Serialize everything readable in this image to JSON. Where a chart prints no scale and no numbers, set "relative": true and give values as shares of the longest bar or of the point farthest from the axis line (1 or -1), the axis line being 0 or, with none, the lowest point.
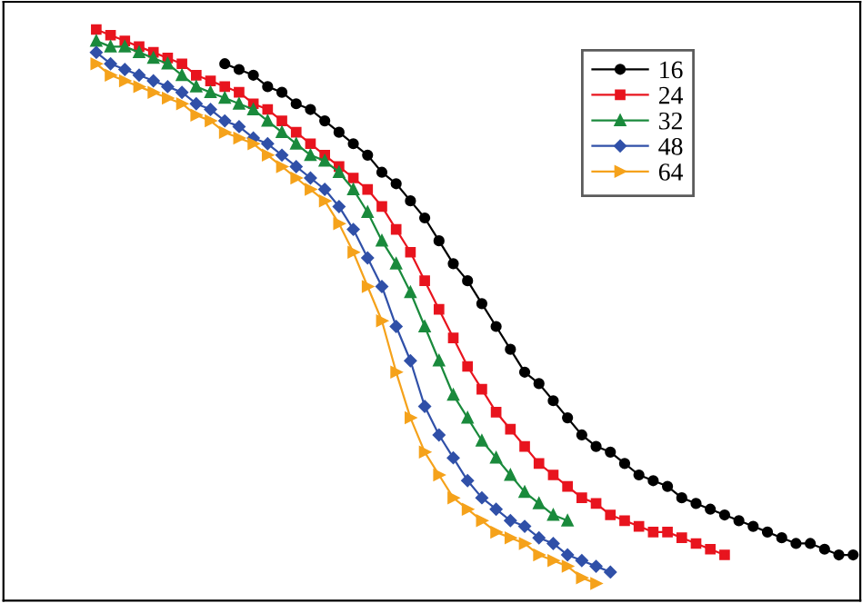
{
  "chart_data": {
    "type": "line",
    "relative": true,
    "categories": [
      null,
      null,
      null,
      null,
      null,
      null,
      null,
      null,
      null,
      null,
      null,
      null,
      null,
      null,
      null,
      null,
      null,
      null,
      null,
      null,
      null,
      null,
      null,
      null,
      null,
      null,
      null,
      null,
      null,
      null,
      null,
      null,
      null,
      null,
      null,
      null,
      null,
      null,
      null,
      null,
      null,
      null,
      null,
      null,
      null,
      null,
      null,
      null,
      null,
      null,
      null,
      null,
      null,
      null,
      null,
      null,
      null,
      null,
      null,
      null
    ],
    "legend": "top right",
    "grid": false,
    "line_style": "solid",
    "series": [
      {
        "name": "16",
        "color": "#000000",
        "marker": "circle",
        "values": [
          null,
          null,
          null,
          null,
          null,
          null,
          null,
          null,
          null,
          null,
          null,
          null,
          null,
          null,
          null,
          0.94,
          0.93,
          0.92,
          0.9,
          0.89,
          0.87,
          0.86,
          0.84,
          0.82,
          0.8,
          0.78,
          0.75,
          0.73,
          0.7,
          0.67,
          0.63,
          0.59,
          0.56,
          0.52,
          0.48,
          0.44,
          0.4,
          0.38,
          0.35,
          0.32,
          0.29,
          0.27,
          0.26,
          0.24,
          0.22,
          0.21,
          0.2,
          0.18,
          0.17,
          0.16,
          0.15,
          0.14,
          0.13,
          0.12,
          0.11,
          0.1,
          0.1,
          0.09,
          0.08,
          0.08
        ]
      },
      {
        "name": "24",
        "color": "#e8141e",
        "marker": "square",
        "values": [
          null,
          null,
          null,
          null,
          null,
          null,
          1.0,
          0.99,
          0.98,
          0.97,
          0.96,
          0.95,
          0.94,
          0.92,
          0.91,
          0.9,
          0.89,
          0.87,
          0.86,
          0.84,
          0.82,
          0.8,
          0.78,
          0.76,
          0.74,
          0.72,
          0.69,
          0.65,
          0.61,
          0.56,
          0.51,
          0.46,
          0.41,
          0.37,
          0.33,
          0.3,
          0.27,
          0.24,
          0.22,
          0.2,
          0.18,
          0.17,
          0.15,
          0.14,
          0.13,
          0.12,
          0.12,
          0.11,
          0.1,
          0.09,
          0.08,
          null,
          null,
          null,
          null,
          null,
          null,
          null,
          null,
          null
        ]
      },
      {
        "name": "32",
        "color": "#1a8a3c",
        "marker": "triangle",
        "values": [
          null,
          null,
          null,
          null,
          null,
          null,
          0.98,
          0.97,
          0.97,
          0.96,
          0.95,
          0.94,
          0.92,
          0.9,
          0.89,
          0.88,
          0.87,
          0.86,
          0.84,
          0.82,
          0.8,
          0.78,
          0.77,
          0.75,
          0.72,
          0.68,
          0.63,
          0.59,
          0.54,
          0.48,
          0.42,
          0.36,
          0.32,
          0.28,
          0.25,
          0.22,
          0.19,
          0.17,
          0.15,
          0.14,
          null,
          null,
          null,
          null,
          null,
          null,
          null,
          null,
          null,
          null,
          null,
          null,
          null,
          null,
          null,
          null,
          null,
          null,
          null,
          null
        ]
      },
      {
        "name": "48",
        "color": "#3050a8",
        "marker": "diamond",
        "values": [
          null,
          null,
          null,
          null,
          null,
          null,
          0.96,
          0.94,
          0.93,
          0.92,
          0.91,
          0.9,
          0.89,
          0.87,
          0.86,
          0.84,
          0.83,
          0.81,
          0.8,
          0.78,
          0.76,
          0.74,
          0.72,
          0.69,
          0.65,
          0.6,
          0.55,
          0.48,
          0.42,
          0.34,
          0.29,
          0.25,
          0.21,
          0.18,
          0.16,
          0.14,
          0.13,
          0.11,
          0.1,
          0.08,
          0.07,
          0.06,
          0.05,
          null,
          null,
          null,
          null,
          null,
          null,
          null,
          null,
          null,
          null,
          null,
          null,
          null,
          null,
          null,
          null,
          null
        ]
      },
      {
        "name": "64",
        "color": "#f5a21b",
        "marker": "triangle-right",
        "values": [
          null,
          null,
          null,
          null,
          null,
          null,
          0.94,
          0.92,
          0.91,
          0.9,
          0.89,
          0.88,
          0.87,
          0.85,
          0.84,
          0.82,
          0.81,
          0.8,
          0.78,
          0.76,
          0.74,
          0.72,
          0.7,
          0.66,
          0.61,
          0.55,
          0.49,
          0.4,
          0.32,
          0.26,
          0.22,
          0.18,
          0.16,
          0.14,
          0.12,
          0.11,
          0.1,
          0.08,
          0.07,
          0.06,
          0.04,
          0.03,
          null,
          null,
          null,
          null,
          null,
          null,
          null,
          null,
          null,
          null,
          null,
          null,
          null,
          null,
          null,
          null,
          null,
          null
        ]
      }
    ]
  }
}
